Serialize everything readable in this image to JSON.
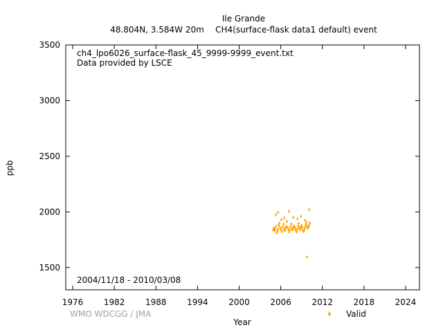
{
  "header": {
    "station": "Ile Grande",
    "location": "48.804N, 3.584W 20m",
    "series_desc": "CH4(surface-flask data1 default) event"
  },
  "plot": {
    "filename": "ch4_lpo6026_surface-flask_45_9999-9999_event.txt",
    "provider": "Data provided by LSCE",
    "date_range": "2004/11/18 - 2010/03/08",
    "credit": "WMO WDCGG / JMA"
  },
  "chart_data": {
    "type": "scatter",
    "xlabel": "Year",
    "ylabel": "ppb",
    "xlim": [
      1975,
      2026
    ],
    "ylim": [
      1300,
      3500
    ],
    "xticks": [
      1976,
      1982,
      1988,
      1994,
      2000,
      2006,
      2012,
      2018,
      2024
    ],
    "yticks": [
      1500,
      2000,
      2500,
      3000,
      3500
    ],
    "legend_position": "bottom-right",
    "grid": false,
    "series": [
      {
        "name": "Valid",
        "color": "#ffa500",
        "marker": "diamond",
        "x": [
          2004.9,
          2005.0,
          2005.1,
          2005.2,
          2005.3,
          2005.4,
          2005.5,
          2005.6,
          2005.7,
          2005.8,
          2005.9,
          2006.0,
          2006.1,
          2006.2,
          2006.3,
          2006.4,
          2006.5,
          2006.6,
          2006.7,
          2006.8,
          2006.9,
          2007.0,
          2007.1,
          2007.2,
          2007.3,
          2007.4,
          2007.5,
          2007.6,
          2007.7,
          2007.8,
          2007.9,
          2008.0,
          2008.1,
          2008.2,
          2008.3,
          2008.4,
          2008.5,
          2008.6,
          2008.7,
          2008.8,
          2008.9,
          2009.0,
          2009.1,
          2009.2,
          2009.3,
          2009.4,
          2009.5,
          2009.6,
          2009.7,
          2009.8,
          2009.9,
          2010.0,
          2010.1,
          2010.2,
          2005.3,
          2005.6,
          2006.1,
          2006.5,
          2007.2,
          2007.8,
          2008.4,
          2008.9,
          2009.5,
          2010.1,
          2009.8
        ],
        "y": [
          1840,
          1855,
          1830,
          1848,
          1870,
          1810,
          1825,
          1845,
          1880,
          1900,
          1860,
          1850,
          1835,
          1822,
          1866,
          1890,
          1845,
          1830,
          1855,
          1870,
          1915,
          1860,
          1842,
          1820,
          1836,
          1868,
          1892,
          1850,
          1835,
          1858,
          1874,
          1865,
          1848,
          1830,
          1820,
          1846,
          1872,
          1895,
          1860,
          1840,
          1856,
          1878,
          1862,
          1835,
          1822,
          1840,
          1860,
          1885,
          1905,
          1870,
          1852,
          1868,
          1880,
          1900,
          1975,
          1995,
          1930,
          1945,
          2005,
          1950,
          1938,
          1960,
          1925,
          2020,
          1595
        ]
      }
    ]
  }
}
